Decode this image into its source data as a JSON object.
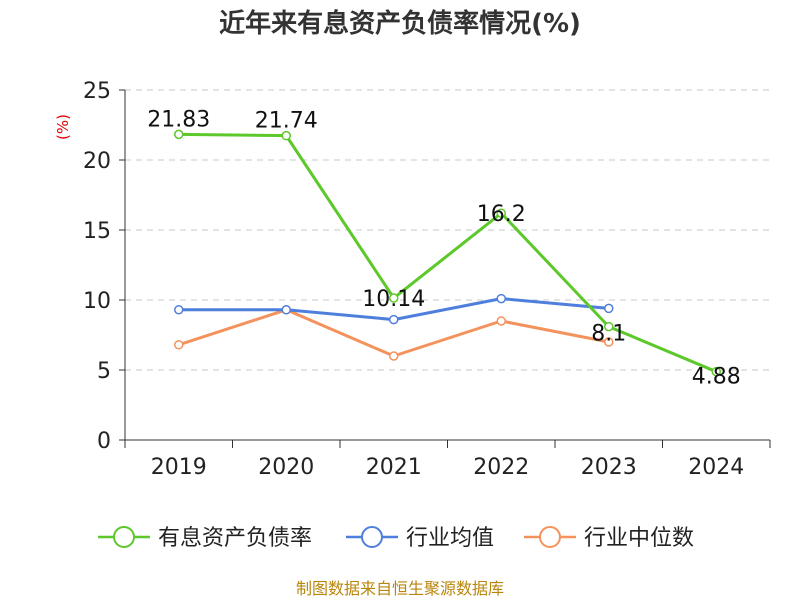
{
  "chart_data": {
    "type": "line",
    "title": "近年来有息资产负债率情况(%)",
    "ylabel": "(%)",
    "categories": [
      "2019",
      "2020",
      "2021",
      "2022",
      "2023",
      "2024"
    ],
    "ylim": [
      0,
      25
    ],
    "yticks": [
      "0",
      "5",
      "10",
      "15",
      "20",
      "25"
    ],
    "grid": true,
    "legend_position": "bottom",
    "series": [
      {
        "name": "有息资产负债率",
        "color": "#5cc82a",
        "values": [
          21.83,
          21.74,
          10.14,
          16.2,
          8.1,
          4.88
        ],
        "labels": [
          "21.83",
          "21.74",
          "10.14",
          "16.2",
          "8.1",
          "4.88"
        ]
      },
      {
        "name": "行业均值",
        "color": "#4f7fdc",
        "values": [
          9.3,
          9.3,
          8.6,
          10.1,
          9.4,
          null
        ]
      },
      {
        "name": "行业中位数",
        "color": "#f4925e",
        "values": [
          6.8,
          9.3,
          6.0,
          8.5,
          7.0,
          null
        ]
      }
    ]
  },
  "source": "制图数据来自恒生聚源数据库"
}
